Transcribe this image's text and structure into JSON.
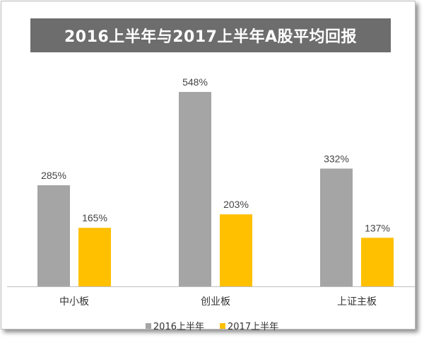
{
  "chart_data": {
    "type": "bar",
    "title": "2016上半年与2017上半年A股平均回报",
    "categories": [
      "中小板",
      "创业板",
      "上证主板"
    ],
    "series": [
      {
        "name": "2016上半年",
        "values": [
          285,
          548,
          332
        ],
        "labels": [
          "285%",
          "548%",
          "332%"
        ],
        "color": "#a5a5a5"
      },
      {
        "name": "2017上半年",
        "values": [
          165,
          203,
          137
        ],
        "labels": [
          "165%",
          "203%",
          "137%"
        ],
        "color": "#ffc000"
      }
    ],
    "ylim": [
      0,
      600
    ],
    "unit": "%",
    "grid": false,
    "legend_position": "bottom"
  }
}
